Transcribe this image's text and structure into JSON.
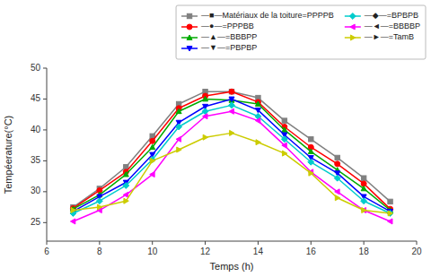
{
  "chart_data": {
    "type": "line",
    "x": [
      7,
      8,
      9,
      10,
      11,
      12,
      13,
      14,
      15,
      16,
      17,
      18,
      19
    ],
    "series": [
      {
        "name": "—■—Matériaux de la toiture=PPPPB",
        "color": "#808080",
        "marker": "square",
        "values": [
          27.5,
          30.5,
          34.0,
          39.0,
          44.2,
          46.2,
          46.2,
          45.2,
          41.5,
          38.5,
          35.5,
          32.2,
          28.4
        ]
      },
      {
        "name": "—●—=PPPBB",
        "color": "#ff0000",
        "marker": "circle",
        "values": [
          27.3,
          30.2,
          33.2,
          38.2,
          43.5,
          45.5,
          46.2,
          44.5,
          40.5,
          37.2,
          34.5,
          31.3,
          27.2
        ]
      },
      {
        "name": "—▲—=BBBPP",
        "color": "#00aa00",
        "marker": "triangle-up",
        "values": [
          27.2,
          29.5,
          32.8,
          37.2,
          43.0,
          45.0,
          44.8,
          44.2,
          40.0,
          36.5,
          33.5,
          30.5,
          27.0
        ]
      },
      {
        "name": "—▼—=PBPBP",
        "color": "#0000ff",
        "marker": "triangle-down",
        "values": [
          26.8,
          29.2,
          31.5,
          36.0,
          41.2,
          43.8,
          45.0,
          43.2,
          39.2,
          35.5,
          33.0,
          29.2,
          26.8
        ]
      },
      {
        "name": "—◆—=BPBPB",
        "color": "#00cccc",
        "marker": "diamond",
        "values": [
          26.5,
          28.5,
          31.0,
          35.2,
          40.5,
          43.0,
          44.0,
          42.2,
          38.5,
          34.8,
          32.2,
          28.5,
          26.5
        ]
      },
      {
        "name": "—◄—=BBBBP",
        "color": "#ff00ff",
        "marker": "triangle-left",
        "values": [
          25.2,
          27.0,
          29.5,
          32.8,
          38.5,
          42.2,
          43.0,
          41.5,
          37.5,
          33.2,
          30.0,
          27.0,
          25.2
        ]
      },
      {
        "name": "—►—=TamB",
        "color": "#cccc00",
        "marker": "triangle-right",
        "values": [
          27.0,
          27.5,
          28.5,
          35.0,
          36.8,
          38.8,
          39.5,
          38.0,
          36.2,
          33.0,
          29.0,
          27.0,
          26.5
        ]
      }
    ],
    "xlabel": "Temps (h)",
    "ylabel": "Tempéerature(°C)",
    "xlim": [
      6,
      20
    ],
    "ylim": [
      22,
      50
    ],
    "xticks": [
      6,
      8,
      10,
      12,
      14,
      16,
      18,
      20
    ],
    "yticks": [
      25,
      30,
      35,
      40,
      45,
      50
    ],
    "legend": "upper right"
  }
}
